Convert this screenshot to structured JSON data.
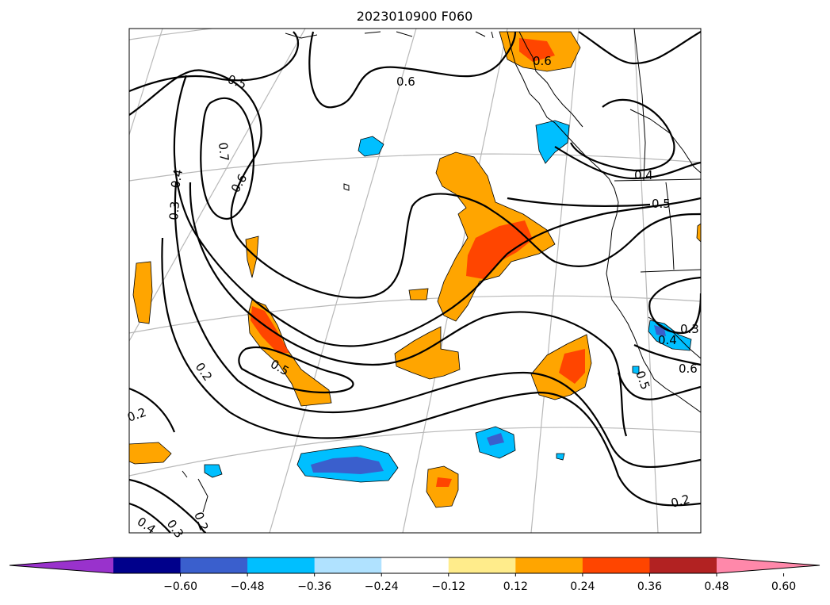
{
  "chart_data": {
    "type": "heatmap",
    "title": "2023010900 F060",
    "map": {
      "gridlines": true,
      "coastlines": true,
      "region": "North-East Pacific and western North America"
    },
    "contour_lines": {
      "color": "#000000",
      "labels": [
        "0.5",
        "0.6",
        "0.7",
        "0.4",
        "0.6",
        "0.3",
        "0.4",
        "0.5",
        "0.2",
        "0.5",
        "0.2",
        "0.6",
        "0.3",
        "0.4",
        "0.5",
        "0.6",
        "0.4",
        "0.3",
        "0.2",
        "0.2"
      ]
    },
    "colorbar": {
      "orientation": "horizontal",
      "extend": "both",
      "colors": [
        "#9932cc",
        "#00008b",
        "#3a5fcd",
        "#00bfff",
        "#b0e2ff",
        "#ffffff",
        "#ffec8b",
        "#ffa500",
        "#ff4500",
        "#b22222",
        "#ff88aa"
      ],
      "tick_labels": [
        "−0.60",
        "−0.48",
        "−0.36",
        "−0.24",
        "−0.12",
        "0.12",
        "0.24",
        "0.36",
        "0.48",
        "0.60"
      ],
      "ticks": [
        -0.6,
        -0.48,
        -0.36,
        -0.24,
        -0.12,
        0.12,
        0.24,
        0.36,
        0.48,
        0.6
      ]
    }
  }
}
